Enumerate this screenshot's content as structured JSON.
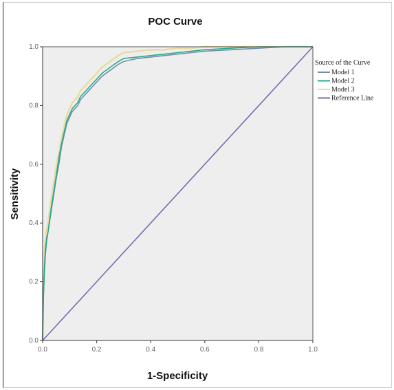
{
  "chart_data": {
    "type": "line",
    "title": "POC Curve",
    "xlabel": "1-Specificity",
    "ylabel": "Sensitivity",
    "xlim": [
      0,
      1
    ],
    "ylim": [
      0,
      1
    ],
    "x_ticks": [
      "0.0",
      "0.2",
      "0.4",
      "0.6",
      "0.8",
      "1.0"
    ],
    "y_ticks": [
      "0.0",
      "0.2",
      "0.4",
      "0.6",
      "0.8",
      "1.0"
    ],
    "grid": false,
    "plot_background": "#eeeeee",
    "legend": {
      "title": "Source of the Curve",
      "placement": "right"
    },
    "series": [
      {
        "name": "Model 1",
        "color": "#6f8fa8",
        "x": [
          0,
          0.003,
          0.006,
          0.01,
          0.015,
          0.02,
          0.03,
          0.04,
          0.05,
          0.06,
          0.07,
          0.08,
          0.09,
          0.1,
          0.11,
          0.12,
          0.13,
          0.14,
          0.15,
          0.16,
          0.18,
          0.2,
          0.22,
          0.25,
          0.28,
          0.3,
          0.35,
          0.4,
          0.45,
          0.5,
          0.55,
          0.6,
          0.7,
          0.8,
          0.9,
          1.0
        ],
        "y": [
          0,
          0.16,
          0.24,
          0.31,
          0.35,
          0.37,
          0.43,
          0.49,
          0.55,
          0.6,
          0.66,
          0.7,
          0.74,
          0.76,
          0.78,
          0.79,
          0.8,
          0.82,
          0.83,
          0.84,
          0.86,
          0.88,
          0.9,
          0.92,
          0.94,
          0.95,
          0.96,
          0.965,
          0.97,
          0.975,
          0.98,
          0.985,
          0.99,
          0.995,
          1.0,
          1.0
        ]
      },
      {
        "name": "Model 2",
        "color": "#2aa98a",
        "x": [
          0,
          0.003,
          0.006,
          0.01,
          0.015,
          0.02,
          0.03,
          0.04,
          0.05,
          0.06,
          0.07,
          0.08,
          0.09,
          0.1,
          0.11,
          0.12,
          0.13,
          0.14,
          0.15,
          0.16,
          0.18,
          0.2,
          0.22,
          0.25,
          0.28,
          0.3,
          0.35,
          0.4,
          0.45,
          0.5,
          0.55,
          0.6,
          0.7,
          0.8,
          0.9,
          1.0
        ],
        "y": [
          0,
          0.15,
          0.22,
          0.29,
          0.34,
          0.37,
          0.44,
          0.5,
          0.56,
          0.62,
          0.67,
          0.71,
          0.75,
          0.77,
          0.79,
          0.8,
          0.81,
          0.83,
          0.84,
          0.85,
          0.87,
          0.89,
          0.91,
          0.93,
          0.95,
          0.96,
          0.965,
          0.97,
          0.975,
          0.98,
          0.985,
          0.99,
          0.995,
          1.0,
          1.0,
          1.0
        ]
      },
      {
        "name": "Model 3",
        "color": "#e8dca0",
        "x": [
          0,
          0.003,
          0.006,
          0.01,
          0.015,
          0.02,
          0.03,
          0.04,
          0.05,
          0.06,
          0.07,
          0.08,
          0.09,
          0.1,
          0.11,
          0.12,
          0.13,
          0.14,
          0.15,
          0.16,
          0.18,
          0.2,
          0.22,
          0.25,
          0.28,
          0.3,
          0.35,
          0.4,
          0.45,
          0.5,
          0.55,
          0.6,
          0.7,
          0.8,
          0.9,
          1.0
        ],
        "y": [
          0,
          0.2,
          0.27,
          0.34,
          0.38,
          0.4,
          0.47,
          0.53,
          0.59,
          0.64,
          0.69,
          0.73,
          0.77,
          0.79,
          0.81,
          0.82,
          0.83,
          0.85,
          0.86,
          0.87,
          0.89,
          0.91,
          0.93,
          0.95,
          0.97,
          0.98,
          0.985,
          0.99,
          0.99,
          0.995,
          0.995,
          1.0,
          1.0,
          1.0,
          1.0,
          1.0
        ]
      },
      {
        "name": "Reference Line",
        "color": "#7a6ab0",
        "x": [
          0,
          1
        ],
        "y": [
          0,
          1
        ]
      }
    ]
  }
}
